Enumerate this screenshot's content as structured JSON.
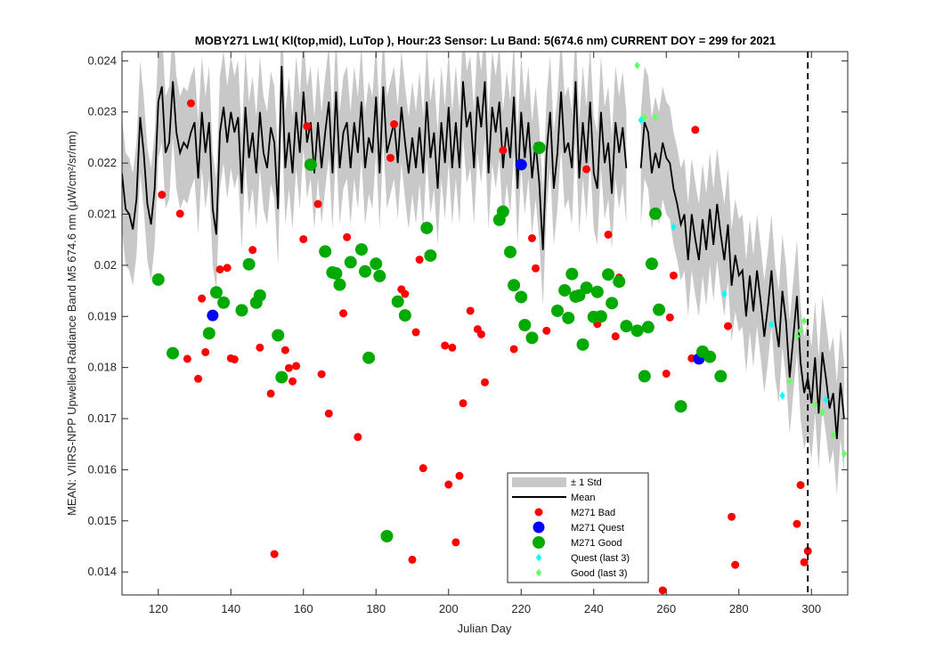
{
  "chart_data": {
    "type": "scatter",
    "title": "MOBY271   Lw1( Kl(top,mid), LuTop ),   Hour:23 Sensor: Lu Band: 5(674.6 nm)   CURRENT DOY = 299 for 2021",
    "xlabel": "Julian Day",
    "ylabel": "MEAN: VIIRS-NPP Upwelled Radiance Band M5 674.6 nm (μW/cm²/sr/nm)",
    "xlim": [
      110,
      310
    ],
    "ylim": [
      0.01355,
      0.02418
    ],
    "x_ticks": [
      "120",
      "140",
      "160",
      "180",
      "200",
      "220",
      "240",
      "260",
      "280",
      "300"
    ],
    "y_ticks": [
      "0.014",
      "0.015",
      "0.016",
      "0.017",
      "0.018",
      "0.019",
      "0.02",
      "0.021",
      "0.022",
      "0.023",
      "0.024"
    ],
    "current_doy": 299,
    "grid": false,
    "legend_position": "bottom-center",
    "legend": [
      "± 1 Std",
      "Mean",
      "M271 Bad",
      "M271 Quest",
      "M271 Good",
      "Quest (last 3)",
      "Good (last 3)"
    ],
    "colors": {
      "std_band": "#c8c8c8",
      "mean": "#000000",
      "bad": "#ff0000",
      "quest": "#0000ff",
      "good": "#00aa00",
      "quest_last3": "#00ffff",
      "good_last3": "#66ff66"
    },
    "mean_series": {
      "segment1": {
        "x": [
          110,
          111,
          112,
          113,
          114,
          115,
          116,
          117,
          118,
          119,
          120,
          121,
          122,
          123,
          124,
          125,
          126,
          127,
          128,
          129,
          130,
          131,
          132,
          133,
          134,
          135,
          136,
          137,
          138,
          139,
          140,
          141,
          142,
          143,
          144,
          145,
          146,
          147,
          148,
          149,
          150,
          151,
          152,
          153,
          154,
          155,
          156,
          157,
          158,
          159,
          160,
          161,
          162,
          163,
          164,
          165,
          166,
          167,
          168,
          169,
          170,
          171,
          172,
          173,
          174,
          175,
          176,
          177,
          178,
          179,
          180,
          181,
          182,
          183,
          184,
          185,
          186,
          187,
          188,
          189,
          190,
          191,
          192,
          193,
          194,
          195,
          196,
          197,
          198,
          199,
          200,
          201,
          202,
          203,
          204,
          205,
          206,
          207,
          208,
          209,
          210,
          211,
          212,
          213,
          214,
          215,
          216,
          217,
          218,
          219,
          220,
          221,
          222,
          223,
          224,
          225,
          226,
          227,
          228,
          229,
          230,
          231,
          232,
          233,
          234,
          235,
          236,
          237,
          238,
          239,
          240,
          241,
          242,
          243,
          244,
          245,
          246,
          247,
          248,
          249
        ],
        "y": [
          0.0218,
          0.0211,
          0.021,
          0.0207,
          0.0213,
          0.0229,
          0.0222,
          0.0212,
          0.0208,
          0.0215,
          0.0232,
          0.0235,
          0.0222,
          0.0224,
          0.0236,
          0.0226,
          0.0222,
          0.0224,
          0.0223,
          0.0226,
          0.0228,
          0.0217,
          0.023,
          0.0222,
          0.0228,
          0.0211,
          0.0206,
          0.0226,
          0.0231,
          0.0224,
          0.023,
          0.0226,
          0.0229,
          0.0214,
          0.0231,
          0.0221,
          0.0226,
          0.0218,
          0.023,
          0.0222,
          0.0219,
          0.0227,
          0.0224,
          0.0211,
          0.0239,
          0.0219,
          0.0226,
          0.0218,
          0.023,
          0.0222,
          0.0234,
          0.0224,
          0.0228,
          0.0218,
          0.0228,
          0.0219,
          0.0226,
          0.0232,
          0.0218,
          0.0234,
          0.0219,
          0.0226,
          0.0228,
          0.0219,
          0.0228,
          0.0222,
          0.0232,
          0.0219,
          0.0225,
          0.0222,
          0.0233,
          0.0218,
          0.0235,
          0.0222,
          0.0225,
          0.0228,
          0.022,
          0.0231,
          0.0224,
          0.0218,
          0.0225,
          0.0219,
          0.0227,
          0.0218,
          0.0232,
          0.0221,
          0.0226,
          0.0215,
          0.0228,
          0.022,
          0.0231,
          0.0219,
          0.0228,
          0.0219,
          0.0236,
          0.0227,
          0.023,
          0.0219,
          0.0233,
          0.0227,
          0.0236,
          0.0218,
          0.0231,
          0.0226,
          0.0232,
          0.0219,
          0.0227,
          0.0221,
          0.0233,
          0.0215,
          0.023,
          0.0221,
          0.0228,
          0.0217,
          0.0224,
          0.0216,
          0.0203,
          0.0222,
          0.023,
          0.0215,
          0.0222,
          0.0234,
          0.0222,
          0.0224,
          0.0219,
          0.0236,
          0.0217,
          0.0228,
          0.022,
          0.0232,
          0.0218,
          0.0215,
          0.023,
          0.022,
          0.0224,
          0.0214,
          0.0228,
          0.0222,
          0.0227,
          0.0219
        ]
      },
      "segment2": {
        "x": [
          253,
          254,
          255,
          256,
          257,
          258,
          259,
          260,
          261,
          262,
          263,
          264,
          265,
          266,
          267,
          268,
          269,
          270,
          271,
          272,
          273,
          274,
          275,
          276,
          277,
          278,
          279,
          280,
          281,
          282,
          283,
          284,
          285,
          286,
          287,
          288,
          289,
          290,
          291,
          292,
          293,
          294,
          295,
          296,
          297,
          298,
          299,
          300,
          301,
          302,
          303,
          304,
          305,
          306,
          307,
          308,
          309
        ],
        "y": [
          0.0219,
          0.0228,
          0.0226,
          0.0218,
          0.0222,
          0.0219,
          0.0224,
          0.0221,
          0.022,
          0.0215,
          0.0212,
          0.0208,
          0.021,
          0.0201,
          0.021,
          0.0205,
          0.0201,
          0.0209,
          0.0203,
          0.0211,
          0.0204,
          0.0212,
          0.0206,
          0.0201,
          0.0208,
          0.0196,
          0.0202,
          0.0198,
          0.0199,
          0.019,
          0.0198,
          0.0191,
          0.0199,
          0.0193,
          0.0186,
          0.0192,
          0.0199,
          0.0189,
          0.0184,
          0.0195,
          0.0189,
          0.0178,
          0.0186,
          0.0194,
          0.0181,
          0.0175,
          0.0178,
          0.0173,
          0.0182,
          0.0171,
          0.0183,
          0.0178,
          0.0172,
          0.0175,
          0.0166,
          0.0177,
          0.017
        ]
      },
      "std": 0.0011
    },
    "series": [
      {
        "name": "M271 Bad",
        "points": [
          [
            121,
            0.02138
          ],
          [
            126,
            0.02101
          ],
          [
            128,
            0.01817
          ],
          [
            129,
            0.02317
          ],
          [
            131,
            0.01778
          ],
          [
            132,
            0.01935
          ],
          [
            133,
            0.0183
          ],
          [
            137,
            0.01992
          ],
          [
            139,
            0.01995
          ],
          [
            140,
            0.01818
          ],
          [
            141,
            0.01816
          ],
          [
            146,
            0.0203
          ],
          [
            148,
            0.01839
          ],
          [
            151,
            0.01749
          ],
          [
            152,
            0.01435
          ],
          [
            155,
            0.01834
          ],
          [
            156,
            0.01799
          ],
          [
            157,
            0.01773
          ],
          [
            158,
            0.01803
          ],
          [
            160,
            0.02051
          ],
          [
            161,
            0.02272
          ],
          [
            164,
            0.0212
          ],
          [
            165,
            0.01787
          ],
          [
            167,
            0.0171
          ],
          [
            171,
            0.01906
          ],
          [
            172,
            0.02055
          ],
          [
            175,
            0.01664
          ],
          [
            184,
            0.0221
          ],
          [
            185,
            0.02276
          ],
          [
            187,
            0.01953
          ],
          [
            188,
            0.01944
          ],
          [
            190,
            0.01424
          ],
          [
            191,
            0.01869
          ],
          [
            192,
            0.02011
          ],
          [
            193,
            0.01603
          ],
          [
            199,
            0.01843
          ],
          [
            200,
            0.01571
          ],
          [
            201,
            0.01839
          ],
          [
            202,
            0.01458
          ],
          [
            203,
            0.01588
          ],
          [
            204,
            0.0173
          ],
          [
            206,
            0.01911
          ],
          [
            208,
            0.01875
          ],
          [
            209,
            0.01865
          ],
          [
            210,
            0.01771
          ],
          [
            215,
            0.02225
          ],
          [
            218,
            0.01836
          ],
          [
            223,
            0.02053
          ],
          [
            224,
            0.01994
          ],
          [
            227,
            0.01872
          ],
          [
            238,
            0.02188
          ],
          [
            241,
            0.01885
          ],
          [
            244,
            0.0206
          ],
          [
            246,
            0.01861
          ],
          [
            247,
            0.01976
          ],
          [
            259,
            0.01364
          ],
          [
            260,
            0.01788
          ],
          [
            261,
            0.01898
          ],
          [
            262,
            0.0198
          ],
          [
            267,
            0.01818
          ],
          [
            268,
            0.02265
          ],
          [
            277,
            0.01881
          ],
          [
            278,
            0.01508
          ],
          [
            279,
            0.01414
          ],
          [
            296,
            0.01494
          ],
          [
            297,
            0.0157
          ],
          [
            298,
            0.01419
          ],
          [
            299,
            0.01441
          ]
        ]
      },
      {
        "name": "M271 Quest",
        "points": [
          [
            135,
            0.01902
          ],
          [
            220,
            0.02197
          ],
          [
            269,
            0.01817
          ]
        ]
      },
      {
        "name": "M271 Good",
        "points": [
          [
            120,
            0.01972
          ],
          [
            124,
            0.01828
          ],
          [
            134,
            0.01867
          ],
          [
            136,
            0.01947
          ],
          [
            138,
            0.01927
          ],
          [
            143,
            0.01912
          ],
          [
            145,
            0.02002
          ],
          [
            147,
            0.01927
          ],
          [
            148,
            0.01941
          ],
          [
            153,
            0.01863
          ],
          [
            154,
            0.01781
          ],
          [
            162,
            0.02197
          ],
          [
            166,
            0.02027
          ],
          [
            168,
            0.01986
          ],
          [
            169,
            0.01984
          ],
          [
            170,
            0.01962
          ],
          [
            173,
            0.02006
          ],
          [
            176,
            0.02031
          ],
          [
            177,
            0.01988
          ],
          [
            178,
            0.01819
          ],
          [
            180,
            0.02003
          ],
          [
            181,
            0.01979
          ],
          [
            183,
            0.0147
          ],
          [
            186,
            0.01929
          ],
          [
            188,
            0.01902
          ],
          [
            194,
            0.02073
          ],
          [
            195,
            0.02019
          ],
          [
            214,
            0.02089
          ],
          [
            215,
            0.02105
          ],
          [
            217,
            0.02026
          ],
          [
            218,
            0.01961
          ],
          [
            220,
            0.01938
          ],
          [
            221,
            0.01883
          ],
          [
            223,
            0.01858
          ],
          [
            225,
            0.0223
          ],
          [
            230,
            0.01911
          ],
          [
            232,
            0.01951
          ],
          [
            233,
            0.01897
          ],
          [
            234,
            0.01983
          ],
          [
            235,
            0.01939
          ],
          [
            236,
            0.01941
          ],
          [
            237,
            0.01845
          ],
          [
            238,
            0.01956
          ],
          [
            240,
            0.01899
          ],
          [
            241,
            0.01948
          ],
          [
            242,
            0.019
          ],
          [
            244,
            0.01982
          ],
          [
            245,
            0.01926
          ],
          [
            247,
            0.01968
          ],
          [
            249,
            0.01881
          ],
          [
            252,
            0.01872
          ],
          [
            254,
            0.01783
          ],
          [
            255,
            0.01879
          ],
          [
            256,
            0.02003
          ],
          [
            257,
            0.02101
          ],
          [
            258,
            0.01913
          ],
          [
            264,
            0.01724
          ],
          [
            270,
            0.01831
          ],
          [
            272,
            0.01821
          ],
          [
            275,
            0.01783
          ]
        ]
      },
      {
        "name": "Quest (last 3)",
        "points": [
          [
            253,
            0.02284
          ],
          [
            262,
            0.02075
          ],
          [
            276,
            0.01944
          ],
          [
            289,
            0.01884
          ],
          [
            292,
            0.01745
          ],
          [
            304,
            0.01737
          ]
        ]
      },
      {
        "name": "Good (last 3)",
        "points": [
          [
            252,
            0.02391
          ],
          [
            254,
            0.02289
          ],
          [
            257,
            0.0229
          ],
          [
            294,
            0.01773
          ],
          [
            296,
            0.01861
          ],
          [
            297,
            0.01872
          ],
          [
            298,
            0.01891
          ],
          [
            301,
            0.01727
          ],
          [
            303,
            0.01712
          ],
          [
            306,
            0.01668
          ],
          [
            309,
            0.01631
          ]
        ]
      }
    ]
  }
}
